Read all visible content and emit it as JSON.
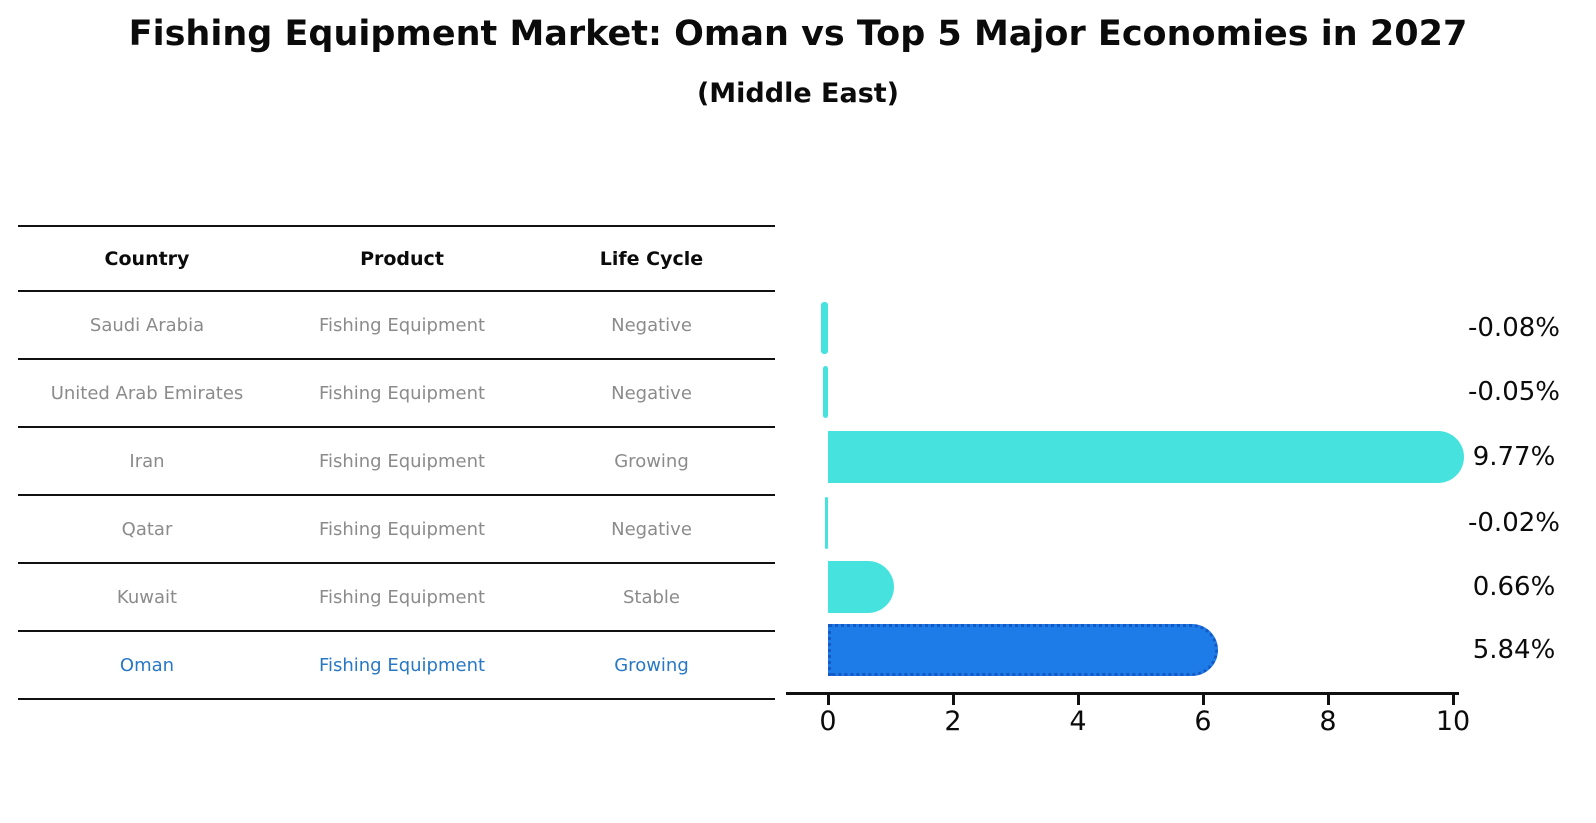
{
  "title": "Fishing Equipment Market: Oman vs Top 5 Major Economies in 2027",
  "subtitle": "(Middle East)",
  "table": {
    "headers": [
      "Country",
      "Product",
      "Life Cycle"
    ],
    "rows": [
      {
        "country": "Saudi Arabia",
        "product": "Fishing Equipment",
        "life_cycle": "Negative"
      },
      {
        "country": "United Arab Emirates",
        "product": "Fishing Equipment",
        "life_cycle": "Negative"
      },
      {
        "country": "Iran",
        "product": "Fishing Equipment",
        "life_cycle": "Growing"
      },
      {
        "country": "Qatar",
        "product": "Fishing Equipment",
        "life_cycle": "Negative"
      },
      {
        "country": "Kuwait",
        "product": "Fishing Equipment",
        "life_cycle": "Stable"
      },
      {
        "country": "Oman",
        "product": "Fishing Equipment",
        "life_cycle": "Growing"
      }
    ],
    "highlighted_row": "Oman"
  },
  "chart_data": {
    "type": "bar",
    "orientation": "horizontal",
    "title": "Fishing Equipment Market: Oman vs Top 5 Major Economies in 2027",
    "subtitle": "(Middle East)",
    "categories": [
      "Saudi Arabia",
      "United Arab Emirates",
      "Iran",
      "Qatar",
      "Kuwait",
      "Oman"
    ],
    "values": [
      -0.08,
      -0.05,
      9.77,
      -0.02,
      0.66,
      5.84
    ],
    "value_labels": [
      "-0.08%",
      "-0.05%",
      "9.77%",
      "-0.02%",
      "0.66%",
      "5.84%"
    ],
    "xlabel": "",
    "ylabel": "",
    "xlim": [
      0,
      10
    ],
    "x_ticks": [
      "0",
      "2",
      "4",
      "6",
      "8",
      "10"
    ],
    "grid": false,
    "legend": "none",
    "highlight_category": "Oman",
    "colors": {
      "bar": "#46e3de",
      "highlight_bar": "#1e7ce8",
      "highlight_border": "#1559c4",
      "highlight_text": "#2878c4",
      "row_text": "#8b8b8b",
      "text": "#0b0b0b"
    }
  }
}
